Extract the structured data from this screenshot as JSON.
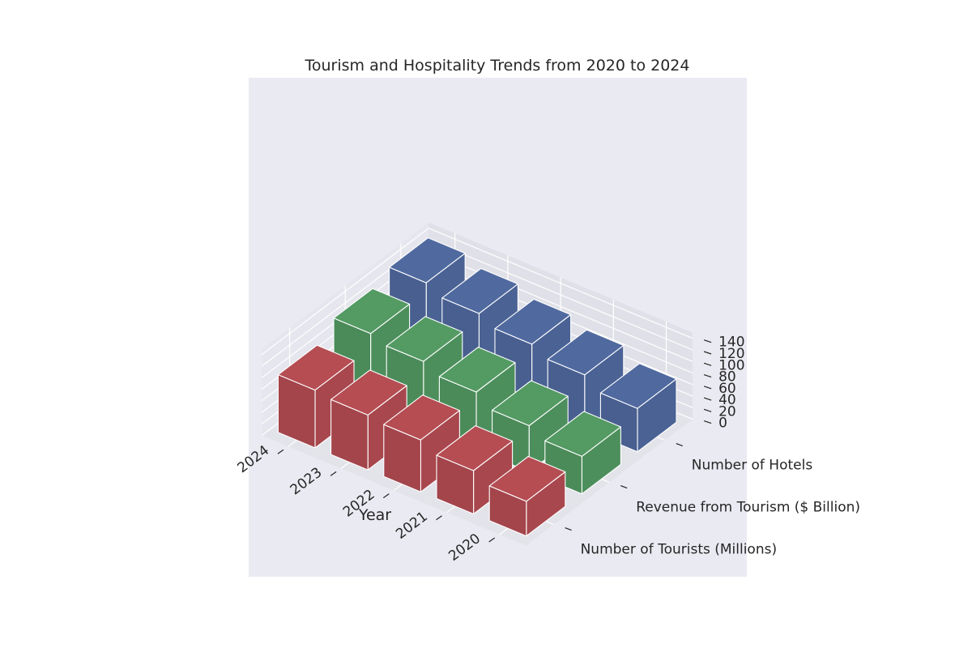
{
  "chart_data": {
    "type": "bar3d",
    "title": "Tourism and Hospitality Trends from 2020 to 2024",
    "xlabel": "Year",
    "ylabel": "",
    "zlabel": "",
    "years": [
      "2020",
      "2021",
      "2022",
      "2023",
      "2024"
    ],
    "metrics": [
      "Number of Tourists (Millions)",
      "Revenue from Tourism ($ Billion)",
      "Number of Hotels"
    ],
    "series": [
      {
        "name": "Number of Tourists (Millions)",
        "color": "#a8474d",
        "values": [
          60,
          75,
          90,
          95,
          100
        ]
      },
      {
        "name": "Revenue from Tourism ($ Billion)",
        "color": "#4d8f5c",
        "values": [
          65,
          80,
          100,
          115,
          125
        ]
      },
      {
        "name": "Number of Hotels",
        "color": "#4a6294",
        "values": [
          75,
          95,
          110,
          125,
          140
        ]
      }
    ],
    "zticks": [
      "0",
      "20",
      "40",
      "60",
      "80",
      "100",
      "120",
      "140"
    ],
    "zlim": [
      0,
      150
    ],
    "grid": true,
    "background": "#eaeaf2"
  }
}
